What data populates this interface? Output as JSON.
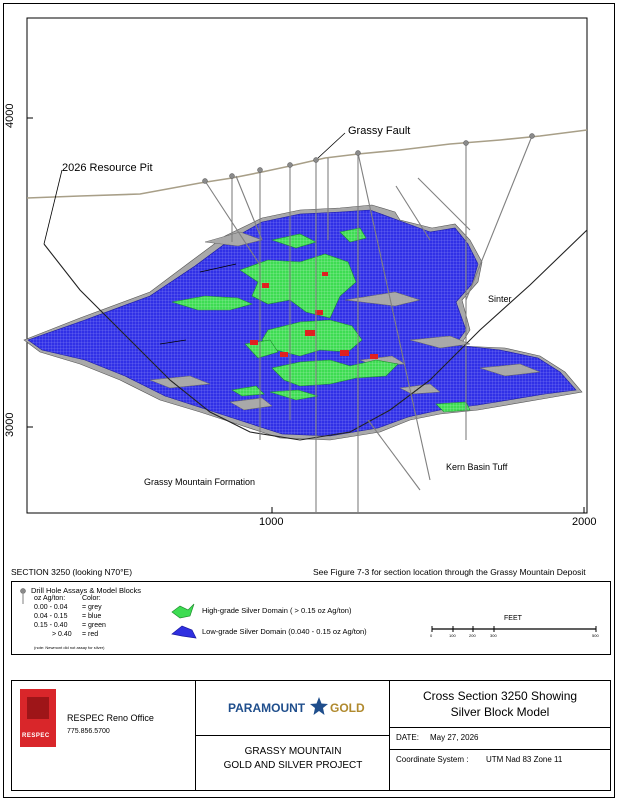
{
  "section": {
    "axis": {
      "y_ticks": [
        "4000",
        "3000"
      ],
      "x_ticks": [
        "1000",
        "2000"
      ]
    },
    "annotations": {
      "grassy_fault": "Grassy Fault",
      "resource_pit": "2026 Resource Pit",
      "sinter": "Sinter",
      "formation": "Grassy Mountain Formation",
      "kern_basin": "Kern Basin Tuff"
    },
    "colors": {
      "low_grade": "#2f2fe0",
      "high_grade": "#33d74a",
      "very_high": "#e02020",
      "gray": "#a9a9a9",
      "topo": "#a89f88"
    }
  },
  "caption": {
    "left": "SECTION 3250 (looking N70°E)",
    "right": "See Figure 7-3 for section location through the Grassy Mountain Deposit"
  },
  "legend": {
    "title": "Drill Hole Assays & Model Blocks",
    "col1": "oz Ag/ton:",
    "col2": "Color:",
    "rows": [
      {
        "range": "0.00 - 0.04",
        "color": "= grey"
      },
      {
        "range": "0.04 - 0.15",
        "color": "= blue"
      },
      {
        "range": "0.15 - 0.40",
        "color": "= green"
      },
      {
        "range": "> 0.40",
        "color": "= red"
      }
    ],
    "note": "(note: Newmont did not assay for silver)",
    "high_grade": "High-grade Silver Domain ( > 0.15 oz Ag/ton)",
    "low_grade": "Low-grade Silver Domain (0.040 - 0.15 oz Ag/ton)",
    "scale_label": "FEET",
    "scale_ticks": [
      "0",
      "100",
      "200",
      "300",
      "500"
    ]
  },
  "title_block": {
    "company": "RESPEC Reno Office",
    "phone": "775.856.5700",
    "logo_text": "RESPEC",
    "partner_logo_left": "PARAMOUNT",
    "partner_logo_right": "GOLD",
    "project_line1": "GRASSY MOUNTAIN",
    "project_line2": "GOLD AND SILVER PROJECT",
    "figure_title_line1": "Cross Section 3250 Showing",
    "figure_title_line2": "Silver Block Model",
    "date_label": "DATE:",
    "date_value": "May 27, 2026",
    "coord_label": "Coordinate System :",
    "coord_value": "UTM Nad 83 Zone 11"
  }
}
